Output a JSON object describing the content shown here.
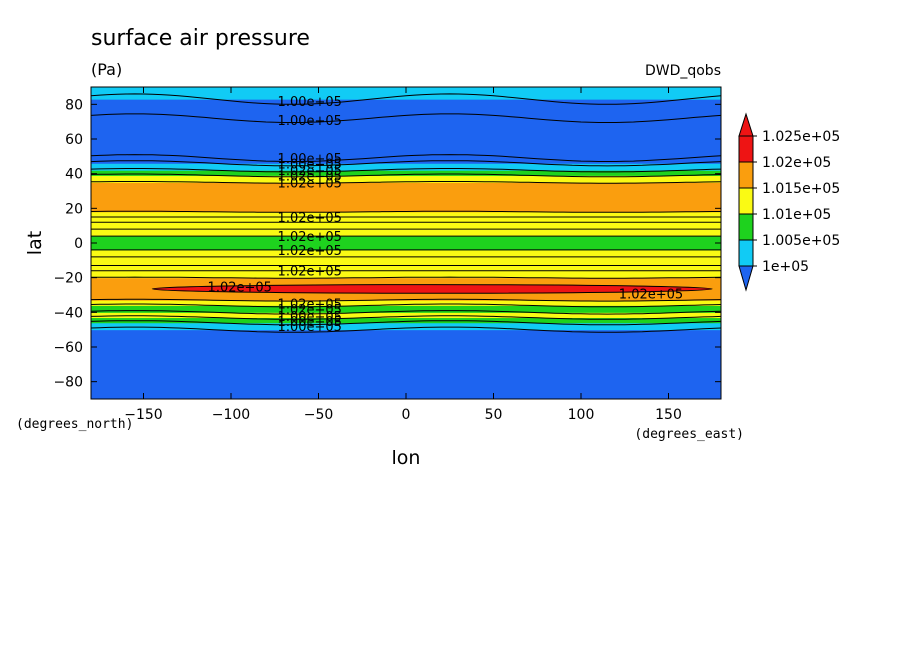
{
  "chart_data": {
    "type": "heatmap",
    "title": "surface air pressure",
    "units": "(Pa)",
    "source_label": "DWD_qobs",
    "xlabel": "lon",
    "ylabel": "lat",
    "x_units_label": "(degrees_east)",
    "y_units_label": "(degrees_north)",
    "xlim": [
      -180,
      180
    ],
    "ylim": [
      -90,
      90
    ],
    "xticks": [
      -150,
      -100,
      -50,
      0,
      50,
      100,
      150
    ],
    "yticks": [
      -80,
      -60,
      -40,
      -20,
      0,
      20,
      40,
      60,
      80
    ],
    "xtick_labels": [
      "−150",
      "−100",
      "−50",
      "0",
      "50",
      "100",
      "150"
    ],
    "ytick_labels": [
      "−80",
      "−60",
      "−40",
      "−20",
      "0",
      "20",
      "40",
      "60",
      "80"
    ],
    "colorbar": {
      "levels": [
        100000,
        100500,
        101000,
        101500,
        102000,
        102500
      ],
      "labels": [
        "1e+05",
        "1.005e+05",
        "1.01e+05",
        "1.015e+05",
        "1.02e+05",
        "1.025e+05"
      ],
      "colors": [
        "#1e64f0",
        "#11cbf5",
        "#1ed21e",
        "#fafa14",
        "#fa9e0e",
        "#ee1414"
      ],
      "under_color": "#1e64f0",
      "over_color": "#ee1414"
    },
    "zonal_bands": [
      {
        "lat_from": -90,
        "lat_to": -50,
        "value": 100000
      },
      {
        "lat_from": -50,
        "lat_to": -46,
        "value": 100500
      },
      {
        "lat_from": -46,
        "lat_to": -43,
        "value": 101000
      },
      {
        "lat_from": -43,
        "lat_to": -40,
        "value": 101500
      },
      {
        "lat_from": -40,
        "lat_to": -36,
        "value": 101000
      },
      {
        "lat_from": -36,
        "lat_to": -33,
        "value": 101500
      },
      {
        "lat_from": -33,
        "lat_to": -20,
        "value": 102000
      },
      {
        "lat_from": -20,
        "lat_to": -13,
        "value": 101500
      },
      {
        "lat_from": -13,
        "lat_to": -4,
        "value": 101500
      },
      {
        "lat_from": -4,
        "lat_to": 4,
        "value": 101000
      },
      {
        "lat_from": 4,
        "lat_to": 12,
        "value": 101500
      },
      {
        "lat_from": 12,
        "lat_to": 18,
        "value": 101500
      },
      {
        "lat_from": 18,
        "lat_to": 35,
        "value": 102000
      },
      {
        "lat_from": 35,
        "lat_to": 39,
        "value": 101500
      },
      {
        "lat_from": 39,
        "lat_to": 42,
        "value": 101000
      },
      {
        "lat_from": 42,
        "lat_to": 46,
        "value": 100500
      },
      {
        "lat_from": 46,
        "lat_to": 72,
        "value": 100000
      },
      {
        "lat_from": 72,
        "lat_to": 83,
        "value": 100000
      },
      {
        "lat_from": 83,
        "lat_to": 90,
        "value": 100500
      }
    ],
    "high_region": {
      "lon_from": -145,
      "lon_to": 175,
      "lat_from": -29,
      "lat_to": -24,
      "value": 102500
    },
    "contours": [
      {
        "lat": -50,
        "wave": 1.5
      },
      {
        "lat": -46,
        "wave": 1.2
      },
      {
        "lat": -43,
        "wave": 1.0
      },
      {
        "lat": -40,
        "wave": 1.0
      },
      {
        "lat": -36,
        "wave": 0.8
      },
      {
        "lat": -33,
        "wave": 0.5
      },
      {
        "lat": -20,
        "wave": 0.3
      },
      {
        "lat": -16,
        "wave": 0.0
      },
      {
        "lat": -13,
        "wave": 0.0
      },
      {
        "lat": -8,
        "wave": 0.0
      },
      {
        "lat": -4,
        "wave": 0.0
      },
      {
        "lat": 4,
        "wave": 0.0
      },
      {
        "lat": 8,
        "wave": 0.0
      },
      {
        "lat": 12,
        "wave": 0.0
      },
      {
        "lat": 15,
        "wave": 0.0
      },
      {
        "lat": 18,
        "wave": 0.3
      },
      {
        "lat": 35,
        "wave": 0.5
      },
      {
        "lat": 39,
        "wave": 0.8
      },
      {
        "lat": 42,
        "wave": 1.0
      },
      {
        "lat": 46,
        "wave": 1.5
      },
      {
        "lat": 49,
        "wave": 2.0
      },
      {
        "lat": 72,
        "wave": 2.5
      },
      {
        "lat": 83,
        "wave": 3.0
      }
    ],
    "contour_labels": [
      {
        "text": "1.00e+05",
        "lon": -55,
        "lat": 82
      },
      {
        "text": "1.00e+05",
        "lon": -55,
        "lat": 71
      },
      {
        "text": "1.00e+05",
        "lon": -55,
        "lat": 49
      },
      {
        "text": "1.00e+05",
        "lon": -55,
        "lat": 46
      },
      {
        "text": "1.02e+05",
        "lon": -55,
        "lat": 42
      },
      {
        "text": "1.02e+05",
        "lon": -55,
        "lat": 39
      },
      {
        "text": "1.02e+05",
        "lon": -55,
        "lat": 35
      },
      {
        "text": "1.02e+05",
        "lon": -55,
        "lat": 15
      },
      {
        "text": "1.02e+05",
        "lon": -55,
        "lat": 4
      },
      {
        "text": "1.02e+05",
        "lon": -55,
        "lat": -4
      },
      {
        "text": "1.02e+05",
        "lon": -55,
        "lat": -16
      },
      {
        "text": "1.02e+05",
        "lon": -95,
        "lat": -25
      },
      {
        "text": "1.02e+05",
        "lon": 140,
        "lat": -29
      },
      {
        "text": "1.02e+05",
        "lon": -55,
        "lat": -35
      },
      {
        "text": "1.02e+05",
        "lon": -55,
        "lat": -38
      },
      {
        "text": "1.00e+05",
        "lon": -55,
        "lat": -42
      },
      {
        "text": "1.00e+05",
        "lon": -55,
        "lat": -45
      },
      {
        "text": "1.00e+05",
        "lon": -55,
        "lat": -48
      }
    ]
  }
}
